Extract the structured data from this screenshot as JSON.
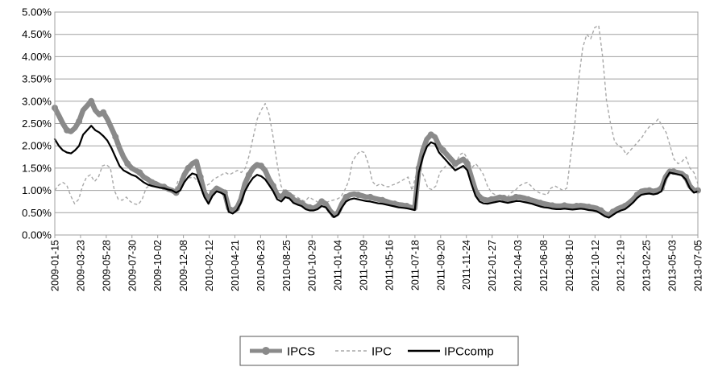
{
  "chart_data": {
    "type": "line",
    "title": "",
    "xlabel": "",
    "ylabel": "",
    "ylim": [
      0,
      0.05
    ],
    "yticks": [
      "0.00%",
      "0.50%",
      "1.00%",
      "1.50%",
      "2.00%",
      "2.50%",
      "3.00%",
      "3.50%",
      "4.00%",
      "4.50%",
      "5.00%"
    ],
    "xticks": [
      "2009-01-15",
      "2009-03-23",
      "2009-05-28",
      "2009-07-30",
      "2009-10-02",
      "2009-12-08",
      "2010-02-12",
      "2010-04-21",
      "2010-06-23",
      "2010-08-25",
      "2010-10-29",
      "2011-01-04",
      "2011-03-09",
      "2011-05-16",
      "2011-07-18",
      "2011-09-20",
      "2011-11-24",
      "2012-01-27",
      "2012-04-03",
      "2012-06-08",
      "2012-08-10",
      "2012-10-12",
      "2012-12-19",
      "2013-02-25",
      "2013-05-03",
      "2013-07-05"
    ],
    "grid": true,
    "legend_position": "bottom",
    "series": [
      {
        "name": "IPCS",
        "color": "#8a8a8a",
        "style": "thick-marker",
        "values": [
          0.0285,
          0.0268,
          0.025,
          0.0235,
          0.0232,
          0.024,
          0.0255,
          0.028,
          0.029,
          0.03,
          0.028,
          0.027,
          0.0275,
          0.026,
          0.024,
          0.022,
          0.0195,
          0.0175,
          0.016,
          0.015,
          0.0145,
          0.014,
          0.013,
          0.0125,
          0.0118,
          0.0115,
          0.011,
          0.0108,
          0.0103,
          0.01,
          0.0095,
          0.011,
          0.0135,
          0.015,
          0.016,
          0.0165,
          0.013,
          0.0095,
          0.008,
          0.0095,
          0.0105,
          0.01,
          0.0095,
          0.006,
          0.0055,
          0.006,
          0.008,
          0.0115,
          0.0135,
          0.015,
          0.0158,
          0.0155,
          0.0145,
          0.0125,
          0.011,
          0.009,
          0.0085,
          0.0095,
          0.009,
          0.008,
          0.0075,
          0.0072,
          0.0065,
          0.0062,
          0.006,
          0.0065,
          0.0075,
          0.007,
          0.0055,
          0.0045,
          0.005,
          0.007,
          0.0085,
          0.009,
          0.0092,
          0.009,
          0.0088,
          0.0085,
          0.0085,
          0.0082,
          0.008,
          0.0078,
          0.0075,
          0.0072,
          0.007,
          0.0068,
          0.0067,
          0.0065,
          0.0062,
          0.006,
          0.015,
          0.019,
          0.0215,
          0.0225,
          0.022,
          0.02,
          0.019,
          0.018,
          0.017,
          0.016,
          0.0165,
          0.017,
          0.016,
          0.013,
          0.01,
          0.0085,
          0.008,
          0.0078,
          0.008,
          0.0082,
          0.0085,
          0.0083,
          0.008,
          0.0082,
          0.0085,
          0.0085,
          0.0083,
          0.008,
          0.0078,
          0.0075,
          0.0072,
          0.007,
          0.0068,
          0.0066,
          0.0065,
          0.0065,
          0.0066,
          0.0065,
          0.0064,
          0.0065,
          0.0066,
          0.0065,
          0.0063,
          0.0062,
          0.006,
          0.0055,
          0.0048,
          0.0045,
          0.0052,
          0.0058,
          0.0062,
          0.0065,
          0.0072,
          0.008,
          0.009,
          0.0098,
          0.01,
          0.01,
          0.0098,
          0.01,
          0.0105,
          0.013,
          0.0143,
          0.0142,
          0.014,
          0.0138,
          0.013,
          0.011,
          0.01,
          0.01
        ]
      },
      {
        "name": "IPC",
        "color": "#a8a8a8",
        "style": "dashed",
        "values": [
          0.01,
          0.0112,
          0.0118,
          0.0112,
          0.0088,
          0.007,
          0.008,
          0.011,
          0.013,
          0.0135,
          0.012,
          0.013,
          0.0155,
          0.0158,
          0.015,
          0.01,
          0.008,
          0.0078,
          0.0085,
          0.0075,
          0.007,
          0.0068,
          0.008,
          0.0105,
          0.0112,
          0.011,
          0.0108,
          0.0105,
          0.0102,
          0.01,
          0.0095,
          0.012,
          0.013,
          0.0135,
          0.0128,
          0.013,
          0.012,
          0.0118,
          0.011,
          0.0115,
          0.0125,
          0.013,
          0.0135,
          0.014,
          0.0135,
          0.014,
          0.0145,
          0.014,
          0.015,
          0.018,
          0.022,
          0.026,
          0.028,
          0.0295,
          0.027,
          0.022,
          0.016,
          0.011,
          0.0095,
          0.0092,
          0.009,
          0.0085,
          0.008,
          0.0075,
          0.0085,
          0.008,
          0.0075,
          0.007,
          0.0072,
          0.0075,
          0.0078,
          0.008,
          0.0085,
          0.01,
          0.012,
          0.0165,
          0.018,
          0.0188,
          0.0185,
          0.016,
          0.012,
          0.011,
          0.0115,
          0.011,
          0.0108,
          0.0112,
          0.0115,
          0.012,
          0.0125,
          0.013,
          0.01,
          0.0135,
          0.015,
          0.013,
          0.0105,
          0.0102,
          0.011,
          0.014,
          0.015,
          0.016,
          0.015,
          0.016,
          0.018,
          0.0185,
          0.017,
          0.015,
          0.016,
          0.015,
          0.0135,
          0.011,
          0.0095,
          0.009,
          0.0085,
          0.008,
          0.0085,
          0.0095,
          0.01,
          0.011,
          0.0115,
          0.0118,
          0.011,
          0.01,
          0.0095,
          0.0092,
          0.009,
          0.0105,
          0.011,
          0.0105,
          0.01,
          0.0105,
          0.018,
          0.025,
          0.035,
          0.042,
          0.045,
          0.044,
          0.0465,
          0.047,
          0.04,
          0.03,
          0.025,
          0.021,
          0.02,
          0.0195,
          0.018,
          0.019,
          0.02,
          0.021,
          0.022,
          0.0235,
          0.0245,
          0.025,
          0.026,
          0.0245,
          0.023,
          0.02,
          0.017,
          0.016,
          0.0165,
          0.0175,
          0.015,
          0.014,
          0.0115
        ]
      },
      {
        "name": "IPCcomp",
        "color": "#000000",
        "style": "solid",
        "values": [
          0.0215,
          0.02,
          0.019,
          0.0185,
          0.0183,
          0.019,
          0.02,
          0.0225,
          0.0235,
          0.0245,
          0.0235,
          0.023,
          0.0222,
          0.0212,
          0.0195,
          0.0175,
          0.0155,
          0.0145,
          0.014,
          0.0135,
          0.0132,
          0.0125,
          0.0118,
          0.0113,
          0.011,
          0.0108,
          0.0106,
          0.0105,
          0.0102,
          0.01,
          0.0095,
          0.01,
          0.0118,
          0.013,
          0.0138,
          0.0135,
          0.011,
          0.0085,
          0.007,
          0.0088,
          0.0098,
          0.0095,
          0.009,
          0.0052,
          0.0048,
          0.0055,
          0.0072,
          0.0098,
          0.0115,
          0.0128,
          0.0135,
          0.0132,
          0.0125,
          0.0112,
          0.0098,
          0.008,
          0.0075,
          0.0085,
          0.0082,
          0.0072,
          0.0068,
          0.0065,
          0.0058,
          0.0055,
          0.0055,
          0.0058,
          0.0065,
          0.0062,
          0.005,
          0.004,
          0.0045,
          0.0062,
          0.0075,
          0.008,
          0.0082,
          0.008,
          0.0078,
          0.0076,
          0.0075,
          0.0073,
          0.0071,
          0.007,
          0.0068,
          0.0066,
          0.0064,
          0.0062,
          0.0061,
          0.006,
          0.0058,
          0.0056,
          0.014,
          0.0175,
          0.0198,
          0.0208,
          0.0204,
          0.0185,
          0.0175,
          0.0165,
          0.0155,
          0.0145,
          0.015,
          0.0155,
          0.0145,
          0.0115,
          0.0088,
          0.0075,
          0.0071,
          0.007,
          0.0072,
          0.0074,
          0.0076,
          0.0074,
          0.0072,
          0.0074,
          0.0076,
          0.0076,
          0.0074,
          0.0072,
          0.007,
          0.0067,
          0.0064,
          0.0062,
          0.0061,
          0.0059,
          0.0058,
          0.0058,
          0.0059,
          0.0058,
          0.0057,
          0.0058,
          0.0059,
          0.0058,
          0.0056,
          0.0055,
          0.0053,
          0.0048,
          0.0042,
          0.0039,
          0.0045,
          0.0051,
          0.0055,
          0.0058,
          0.0065,
          0.0073,
          0.0083,
          0.009,
          0.0092,
          0.0093,
          0.0091,
          0.0093,
          0.0098,
          0.0125,
          0.014,
          0.0138,
          0.0136,
          0.0134,
          0.0125,
          0.0105,
          0.0095,
          0.0098
        ]
      }
    ]
  }
}
